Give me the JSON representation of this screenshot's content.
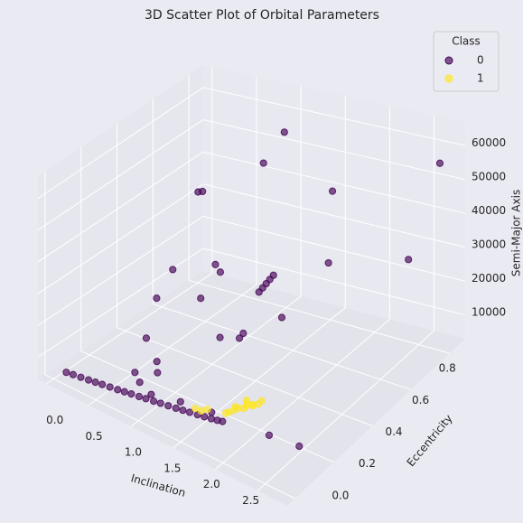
{
  "chart_data": {
    "type": "scatter3d",
    "title": "3D Scatter Plot of Orbital Parameters",
    "xlabel": "Inclination",
    "ylabel": "Eccentricity",
    "zlabel": "Semi-Major Axis",
    "legend_title": "Class",
    "legend": "upper right",
    "grid": true,
    "xlim": [
      -0.1,
      2.85
    ],
    "ylim": [
      -0.04,
      0.88
    ],
    "zlim": [
      3000,
      67000
    ],
    "xticks": [
      {
        "value": 0,
        "label": "0.0"
      },
      {
        "value": 0.5,
        "label": "0.5"
      },
      {
        "value": 1,
        "label": "1.0"
      },
      {
        "value": 1.5,
        "label": "1.5"
      },
      {
        "value": 2,
        "label": "2.0"
      },
      {
        "value": 2.5,
        "label": "2.5"
      }
    ],
    "yticks": [
      {
        "value": 0,
        "label": "0.0"
      },
      {
        "value": 0.2,
        "label": "0.2"
      },
      {
        "value": 0.4,
        "label": "0.4"
      },
      {
        "value": 0.6,
        "label": "0.6"
      },
      {
        "value": 0.8,
        "label": "0.8"
      }
    ],
    "zticks": [
      10000,
      20000,
      30000,
      40000,
      50000,
      60000
    ],
    "series": [
      {
        "name": "0",
        "color": "#440154",
        "x": [
          0.15,
          0.22,
          0.3,
          0.38,
          0.45,
          0.52,
          0.6,
          0.68,
          0.75,
          0.82,
          0.9,
          0.97,
          1.05,
          1.12,
          1.2,
          1.28,
          1.35,
          1.42,
          1.5,
          1.57,
          1.64,
          1.7,
          1.75,
          1.19,
          1.1,
          0.52,
          0.55,
          1.63,
          2.63,
          0.46,
          0.74,
          0.86,
          0.4,
          0.74,
          1.32,
          1.3,
          1.28,
          1.26,
          1.24,
          1.82,
          2.47,
          1.48,
          1.09,
          1.23,
          1.25,
          0.47,
          0.7,
          0.9,
          0.85,
          0.8,
          2.23,
          2.56,
          1.0,
          1.3,
          1.6
        ],
        "y": [
          0.0,
          0.005,
          0.01,
          0.015,
          0.02,
          0.025,
          0.03,
          0.035,
          0.04,
          0.045,
          0.05,
          0.055,
          0.06,
          0.065,
          0.07,
          0.075,
          0.08,
          0.085,
          0.09,
          0.095,
          0.1,
          0.105,
          0.11,
          0.7,
          0.63,
          0.55,
          0.56,
          0.75,
          0.85,
          0.44,
          0.54,
          0.51,
          0.38,
          0.46,
          0.58,
          0.57,
          0.56,
          0.55,
          0.54,
          0.64,
          0.76,
          0.55,
          0.4,
          0.46,
          0.43,
          0.29,
          0.12,
          0.15,
          0.17,
          0.1,
          0.14,
          0.15,
          0.07,
          0.09,
          0.12
        ],
        "z": [
          7000,
          7000,
          7000,
          7000,
          7000,
          7000,
          7000,
          7000,
          7000,
          7000,
          7000,
          7000,
          7000,
          7000,
          7000,
          7000,
          7000,
          7000,
          7000,
          7000,
          7000,
          7000,
          7000,
          62000,
          55000,
          45000,
          45000,
          45000,
          55000,
          25000,
          25000,
          25000,
          18000,
          18000,
          25000,
          24000,
          23000,
          22000,
          21000,
          30000,
          30000,
          15000,
          12000,
          12000,
          12000,
          10000,
          9000,
          10000,
          12000,
          8000,
          7000,
          7000,
          8000,
          8500,
          7500
        ]
      },
      {
        "name": "1",
        "color": "#fde725",
        "x": [
          1.44,
          1.5,
          1.55,
          1.7,
          1.75,
          1.78,
          1.8,
          1.82,
          1.84,
          1.85,
          1.86,
          1.88,
          1.79,
          1.83,
          1.76,
          1.9
        ],
        "y": [
          0.105,
          0.11,
          0.12,
          0.15,
          0.17,
          0.18,
          0.2,
          0.21,
          0.23,
          0.19,
          0.22,
          0.24,
          0.16,
          0.2,
          0.14,
          0.25
        ],
        "z": [
          7500,
          7200,
          7800,
          7000,
          7500,
          8000,
          7200,
          8500,
          7000,
          9000,
          8000,
          7500,
          9500,
          10000,
          8500,
          8200
        ]
      }
    ]
  }
}
